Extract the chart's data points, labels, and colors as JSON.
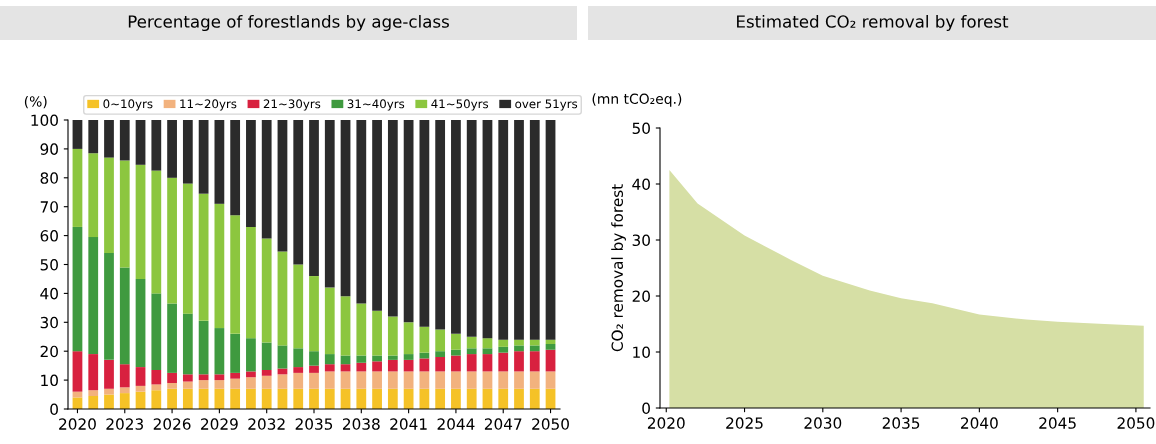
{
  "chart_data": [
    {
      "type": "bar",
      "title": "Percentage of forestlands by age-class",
      "ylabel": "(%)",
      "stacked": true,
      "legend": "top",
      "grid": false,
      "categories": [
        "2020",
        null,
        null,
        "2023",
        null,
        null,
        "2026",
        null,
        null,
        "2029",
        null,
        null,
        "2032",
        null,
        null,
        "2035",
        null,
        null,
        "2038",
        null,
        null,
        "2041",
        null,
        null,
        "2044",
        null,
        null,
        "2047",
        null,
        null,
        "2050"
      ],
      "ylim": [
        0,
        100
      ],
      "yticks": [
        0,
        10,
        20,
        30,
        40,
        50,
        60,
        70,
        80,
        90,
        100
      ],
      "series": [
        {
          "name": "0~10yrs",
          "color": "#f5c227",
          "values": [
            4,
            4.5,
            5,
            5.5,
            6,
            6.5,
            7,
            7,
            7,
            7,
            7,
            7,
            7,
            7,
            7,
            7,
            7,
            7,
            7,
            7,
            7,
            7,
            7,
            7,
            7,
            7,
            7,
            7,
            7,
            7,
            7
          ]
        },
        {
          "name": "11~20yrs",
          "color": "#f2b27e",
          "values": [
            2,
            2,
            2,
            2,
            2,
            2,
            2,
            2.5,
            3,
            3,
            3.5,
            4,
            4.5,
            5,
            5.5,
            5.5,
            6,
            6,
            6,
            6,
            6,
            6,
            6,
            6,
            6,
            6,
            6,
            6,
            6,
            6,
            6
          ]
        },
        {
          "name": "21~30yrs",
          "color": "#d8213f",
          "values": [
            14,
            12.5,
            10,
            8,
            6.5,
            5,
            3.5,
            2.5,
            2,
            2,
            2,
            2,
            2,
            2,
            2,
            2.5,
            2.5,
            2.5,
            3,
            3.5,
            4,
            4,
            4.5,
            5,
            5.5,
            6,
            6,
            6.5,
            7,
            7,
            7.5
          ]
        },
        {
          "name": "31~40yrs",
          "color": "#3f9a3f",
          "values": [
            43,
            40.5,
            37,
            33.5,
            30.5,
            26.5,
            24,
            21,
            18.5,
            16,
            13.5,
            11.5,
            9.5,
            8,
            6.5,
            5,
            3.5,
            3,
            2.5,
            2,
            1.5,
            2,
            2,
            2,
            2,
            2,
            2,
            2,
            2,
            2,
            2
          ]
        },
        {
          "name": "41~50yrs",
          "color": "#8cc63f",
          "values": [
            27,
            29,
            33,
            37,
            39.5,
            42.5,
            43.5,
            45,
            44,
            43,
            41,
            38.5,
            36,
            32.5,
            29,
            26,
            23,
            20.5,
            18,
            15.5,
            13.5,
            11,
            9,
            7.5,
            5.5,
            4,
            3.5,
            2.5,
            2,
            2,
            1.5
          ]
        },
        {
          "name": "over 51yrs",
          "color": "#2b2b2b",
          "values": [
            10,
            11.5,
            13,
            14,
            15.5,
            17.5,
            20,
            22,
            25.5,
            29,
            33,
            37,
            41,
            45.5,
            50,
            54,
            58,
            61,
            63.5,
            66,
            68,
            70,
            71.5,
            72.5,
            74,
            75,
            75.5,
            76,
            76,
            76,
            76
          ]
        }
      ]
    },
    {
      "type": "area",
      "title": "Estimated CO₂ removal by forest",
      "ylabel": "CO₂ removal by forest",
      "annotations": [
        "(mn tCO₂eq.)"
      ],
      "grid": false,
      "legend": false,
      "x": [
        2020.2,
        2022,
        2025,
        2028,
        2030,
        2033,
        2035,
        2037,
        2040,
        2043,
        2045,
        2048,
        2050.5
      ],
      "xlim": [
        2019.6,
        2050.9
      ],
      "xticks": [
        2020,
        2025,
        2030,
        2035,
        2040,
        2045,
        2050
      ],
      "ylim": [
        0,
        50
      ],
      "yticks": [
        0,
        10,
        20,
        30,
        40,
        50
      ],
      "series": [
        {
          "color": "#d6dfa5",
          "values": [
            42.5,
            36.5,
            30.8,
            26.4,
            23.6,
            21,
            19.6,
            18.7,
            16.7,
            15.8,
            15.4,
            15,
            14.7
          ]
        }
      ]
    }
  ]
}
